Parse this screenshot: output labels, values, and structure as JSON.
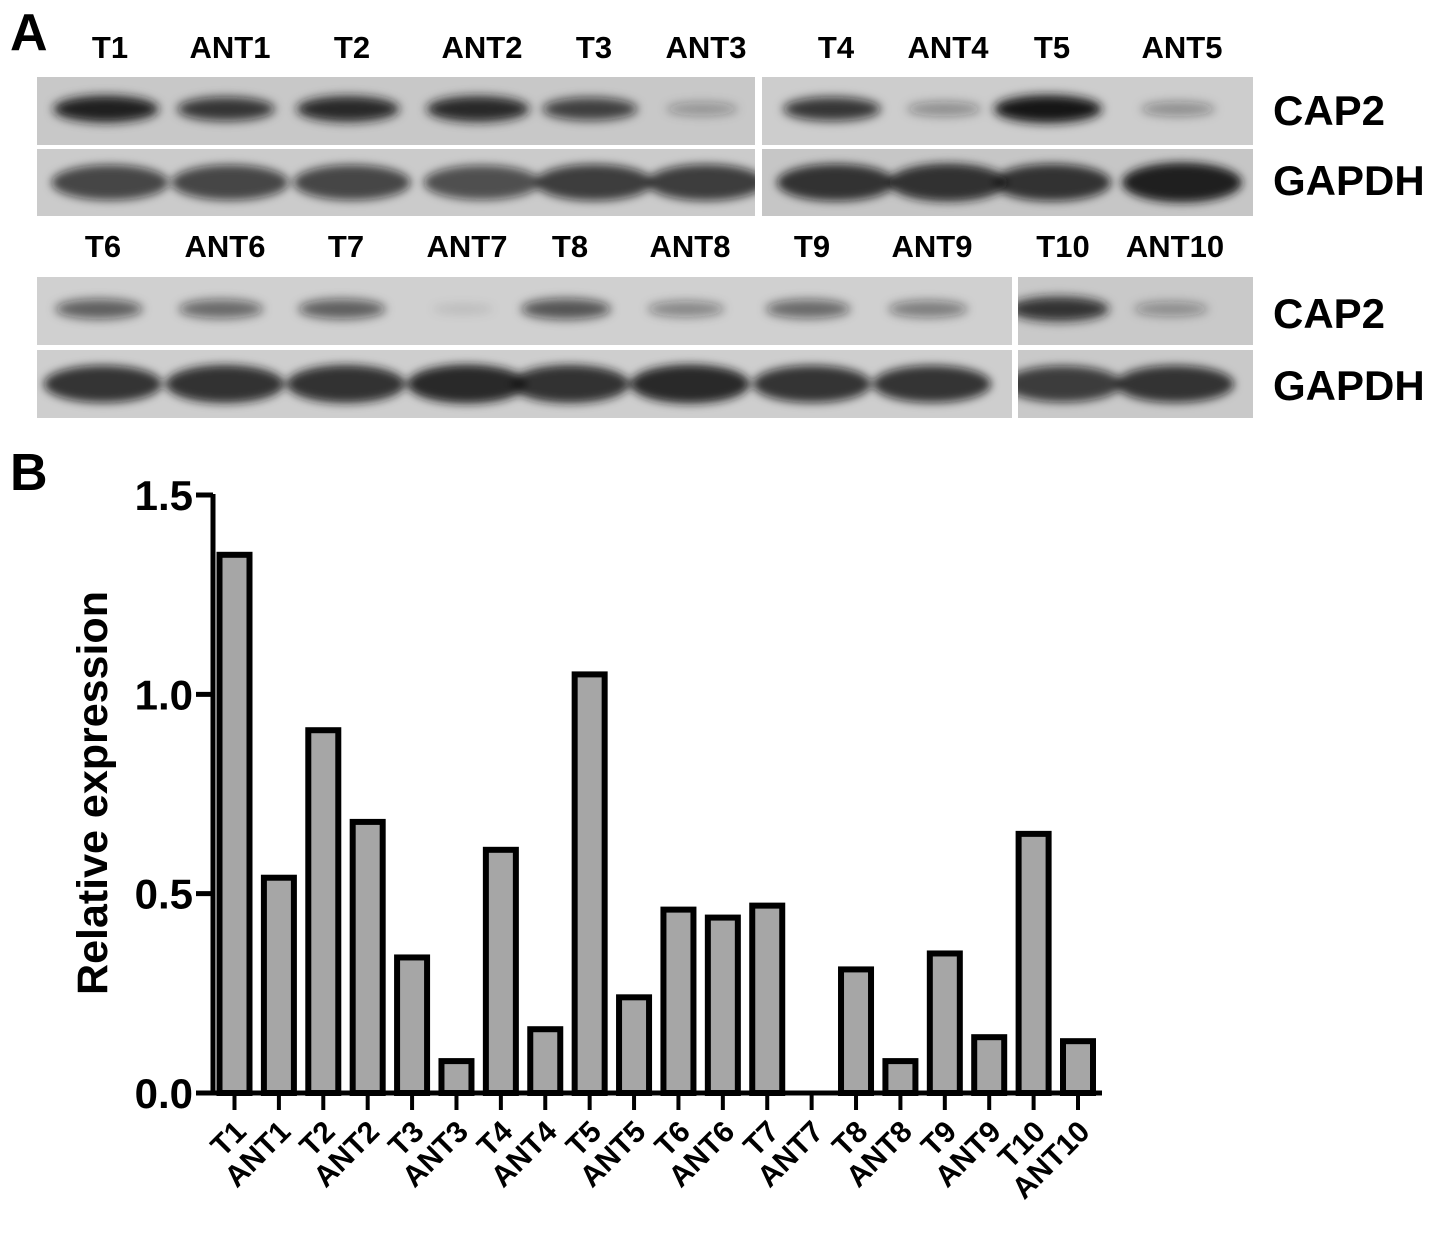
{
  "panel_a": {
    "label": "A",
    "rows": [
      {
        "protein_labels": [
          "CAP2",
          "GAPDH"
        ],
        "lanes": [
          {
            "label": "T1",
            "cap2_band": 0.95,
            "gapdh_band": 0.75
          },
          {
            "label": "ANT1",
            "cap2_band": 0.8,
            "gapdh_band": 0.75
          },
          {
            "label": "T2",
            "cap2_band": 0.9,
            "gapdh_band": 0.75
          },
          {
            "label": "ANT2",
            "cap2_band": 0.9,
            "gapdh_band": 0.7
          },
          {
            "label": "T3",
            "cap2_band": 0.75,
            "gapdh_band": 0.8
          },
          {
            "label": "ANT3",
            "cap2_band": 0.3,
            "gapdh_band": 0.8
          },
          {
            "label": "T4",
            "cap2_band": 0.8,
            "gapdh_band": 0.85
          },
          {
            "label": "ANT4",
            "cap2_band": 0.35,
            "gapdh_band": 0.9
          },
          {
            "label": "T5",
            "cap2_band": 1.0,
            "gapdh_band": 0.85
          },
          {
            "label": "ANT5",
            "cap2_band": 0.35,
            "gapdh_band": 1.0
          }
        ]
      },
      {
        "protein_labels": [
          "CAP2",
          "GAPDH"
        ],
        "lanes": [
          {
            "label": "T6",
            "cap2_band": 0.6,
            "gapdh_band": 0.85
          },
          {
            "label": "ANT6",
            "cap2_band": 0.55,
            "gapdh_band": 0.9
          },
          {
            "label": "T7",
            "cap2_band": 0.6,
            "gapdh_band": 0.9
          },
          {
            "label": "ANT7",
            "cap2_band": 0.1,
            "gapdh_band": 0.95
          },
          {
            "label": "T8",
            "cap2_band": 0.65,
            "gapdh_band": 0.9
          },
          {
            "label": "ANT8",
            "cap2_band": 0.4,
            "gapdh_band": 0.95
          },
          {
            "label": "T9",
            "cap2_band": 0.55,
            "gapdh_band": 0.85
          },
          {
            "label": "ANT9",
            "cap2_band": 0.45,
            "gapdh_band": 0.85
          },
          {
            "label": "T10",
            "cap2_band": 0.85,
            "gapdh_band": 0.8
          },
          {
            "label": "ANT10",
            "cap2_band": 0.35,
            "gapdh_band": 0.85
          }
        ]
      }
    ]
  },
  "panel_b": {
    "label": "B"
  },
  "chart_data": {
    "type": "bar",
    "ylabel": "Relative expression",
    "ylim": [
      0,
      1.5
    ],
    "yticks": [
      {
        "value": 0,
        "label": "0.0"
      },
      {
        "value": 0.5,
        "label": "0.5"
      },
      {
        "value": 1.0,
        "label": "1.0"
      },
      {
        "value": 1.5,
        "label": "1.5"
      }
    ],
    "categories": [
      "T1",
      "ANT1",
      "T2",
      "ANT2",
      "T3",
      "ANT3",
      "T4",
      "ANT4",
      "T5",
      "ANT5",
      "T6",
      "ANT6",
      "T7",
      "ANT7",
      "T8",
      "ANT8",
      "T9",
      "ANT9",
      "T10",
      "ANT10"
    ],
    "values": [
      1.35,
      0.54,
      0.91,
      0.68,
      0.34,
      0.08,
      0.61,
      0.16,
      1.05,
      0.24,
      0.46,
      0.44,
      0.47,
      0,
      0.31,
      0.08,
      0.35,
      0.14,
      0.65,
      0.13
    ],
    "grid": false,
    "bar_color": "#a6a6a6",
    "edge_color": "#000000"
  }
}
